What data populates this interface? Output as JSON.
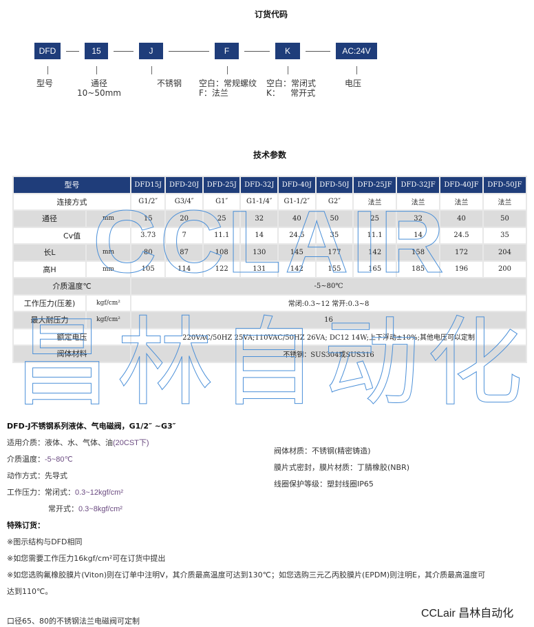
{
  "order_code": {
    "title": "订货代码",
    "boxes": [
      "DFD",
      "15",
      "J",
      "F",
      "K",
      "AC:24V"
    ],
    "labels": [
      "型号",
      "通径\n10~50mm",
      "不锈钢",
      "空白：常规螺纹\nF：法兰",
      "空白：常闭式\nK：    常开式",
      "电压"
    ]
  },
  "spec": {
    "title": "技术参数",
    "header": [
      "型号",
      "DFD15J",
      "DFD-20J",
      "DFD-25J",
      "DFD-32J",
      "DFD-40J",
      "DFD-50J",
      "DFD-25JF",
      "DFD-32JF",
      "DFD-40JF",
      "DFD-50JF"
    ],
    "rows": [
      {
        "label": "连接方式",
        "unit": "",
        "values": [
          "G1/2″",
          "G3/4″",
          "G1″",
          "G1-1/4″",
          "G1-1/2″",
          "G2″",
          "法兰",
          "法兰",
          "法兰",
          "法兰"
        ]
      },
      {
        "label": "通径",
        "unit": "mm",
        "values": [
          "15",
          "20",
          "25",
          "32",
          "40",
          "50",
          "25",
          "32",
          "40",
          "50"
        ]
      },
      {
        "label": "Cv值",
        "unit": "",
        "values": [
          "3.73",
          "7",
          "11.1",
          "14",
          "24.5",
          "35",
          "11.1",
          "14",
          "24.5",
          "35"
        ]
      },
      {
        "label": "长L",
        "unit": "mm",
        "values": [
          "80",
          "87",
          "108",
          "130",
          "145",
          "177",
          "142",
          "158",
          "172",
          "204"
        ]
      },
      {
        "label": "高H",
        "unit": "mm",
        "values": [
          "105",
          "114",
          "122",
          "131",
          "142",
          "155",
          "165",
          "185",
          "196",
          "200"
        ]
      }
    ],
    "span_rows": [
      {
        "label": "介质温度℃",
        "unit": "",
        "value": "-5~80℃"
      },
      {
        "label": "工作压力(压差)",
        "unit": "kgf/cm²",
        "value": "常闭:0.3~12    常开:0.3~8"
      },
      {
        "label": "最大耐压力",
        "unit": "kgf/cm²",
        "value": "16"
      },
      {
        "label": "额定电压",
        "unit": "",
        "value": "220VAC/50HZ 25VA;110VAC/50HZ 26VA; DC12 14W;上下浮动±10%;其他电压可以定制"
      },
      {
        "label": "阀体材料",
        "unit": "",
        "value": "不锈钢：SUS304或SUS316"
      }
    ]
  },
  "watermark": {
    "line1": "CCLAIR",
    "line2": "昌林自动化"
  },
  "desc": {
    "title": "DFD-J不锈钢系列液体、气电磁阀，G1/2″ ~G3″",
    "left": [
      {
        "k": "适用介质：",
        "v": "液体、水、气体、油",
        "h": "(20CST下)"
      },
      {
        "k": "介质温度：",
        "v": "",
        "h": "-5~80℃"
      },
      {
        "k": "动作方式：",
        "v": "先导式",
        "h": ""
      },
      {
        "k": "工作压力：",
        "v": "常闭式：",
        "h": "0.3~12kgf/cm²"
      },
      {
        "k": "",
        "v": "常开式：",
        "h": "0.3~8kgf/cm²"
      }
    ],
    "right": [
      "阀体材质：不锈钢(精密铸造)",
      "膜片式密封，膜片材质：丁腈橡胶(NBR)",
      "线圈保护等级：塑封线圈IP65"
    ],
    "special_title": "特殊订货：",
    "notes": [
      "※图示结构与DFD相同",
      "※如您需要工作压力16kgf/cm²可在订货中提出",
      "※如您选购氟橡胶膜片(Viton)则在订单中注明V，其介质最高温度可达到130℃；如您选购三元乙丙胶膜片(EPDM)则注明E，其介质最高温度可",
      "达到110℃。"
    ],
    "footer": "口径65、80的不锈钢法兰电磁阀可定制"
  },
  "brand": "CCLair 昌林自动化",
  "colors": {
    "navy": "#1f3d7a",
    "row_gray": "#dcdcdc",
    "watermark": "#4a8fd8"
  }
}
